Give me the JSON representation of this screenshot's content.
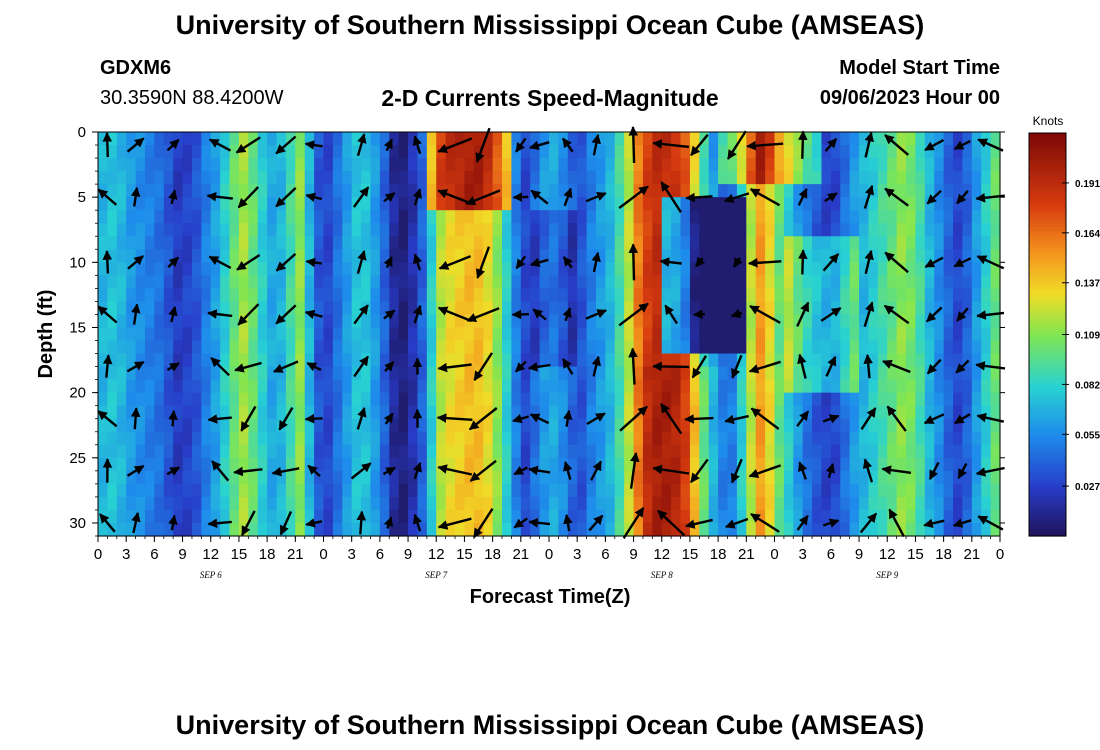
{
  "page": {
    "title_top": "University of Southern Mississippi Ocean Cube (AMSEAS)",
    "title_bottom": "University of Southern Mississippi Ocean Cube (AMSEAS)",
    "station_id": "GDXM6",
    "station_coords": "30.3590N  88.4200W",
    "plot_title": "2-D Currents Speed-Magnitude",
    "model_start_label": "Model Start Time",
    "model_start_value": "09/06/2023 Hour 00"
  },
  "chart_data": {
    "type": "heatmap",
    "title": "2-D Currents Speed-Magnitude",
    "xlabel": "Forecast Time(Z)",
    "ylabel": "Depth (ft)",
    "colorbar_label": "Knots",
    "colorbar_ticks": [
      "0.191",
      "0.164",
      "0.137",
      "0.109",
      "0.082",
      "0.055",
      "0.027"
    ],
    "colorbar_range": [
      0.0,
      0.218
    ],
    "x_tick_labels": [
      "0",
      "3",
      "6",
      "9",
      "12",
      "15",
      "18",
      "21",
      "0",
      "3",
      "6",
      "9",
      "12",
      "15",
      "18",
      "21",
      "0",
      "3",
      "6",
      "9",
      "12",
      "15",
      "18",
      "21",
      "0",
      "3",
      "6",
      "9",
      "12",
      "15",
      "18",
      "21",
      "0"
    ],
    "x_range_hours": [
      0,
      96
    ],
    "date_labels": [
      {
        "label": "SEP 6",
        "hour": 12
      },
      {
        "label": "SEP 7",
        "hour": 36
      },
      {
        "label": "SEP 8",
        "hour": 60
      },
      {
        "label": "SEP 9",
        "hour": 84
      }
    ],
    "y_tick_labels": [
      "0",
      "5",
      "10",
      "15",
      "20",
      "25",
      "30"
    ],
    "ylim": [
      0,
      31
    ],
    "speed_profile_by_hour": [
      {
        "h": 0,
        "v": 0.07
      },
      {
        "h": 1,
        "v": 0.075
      },
      {
        "h": 2,
        "v": 0.07
      },
      {
        "h": 3,
        "v": 0.06
      },
      {
        "h": 4,
        "v": 0.055
      },
      {
        "h": 5,
        "v": 0.05
      },
      {
        "h": 6,
        "v": 0.045
      },
      {
        "h": 7,
        "v": 0.035
      },
      {
        "h": 8,
        "v": 0.025
      },
      {
        "h": 9,
        "v": 0.028
      },
      {
        "h": 10,
        "v": 0.035
      },
      {
        "h": 11,
        "v": 0.05
      },
      {
        "h": 12,
        "v": 0.062
      },
      {
        "h": 13,
        "v": 0.08
      },
      {
        "h": 14,
        "v": 0.1
      },
      {
        "h": 15,
        "v": 0.115
      },
      {
        "h": 16,
        "v": 0.1
      },
      {
        "h": 17,
        "v": 0.08
      },
      {
        "h": 18,
        "v": 0.065
      },
      {
        "h": 19,
        "v": 0.07
      },
      {
        "h": 20,
        "v": 0.09
      },
      {
        "h": 21,
        "v": 0.11
      },
      {
        "h": 22,
        "v": 0.07
      },
      {
        "h": 23,
        "v": 0.035
      },
      {
        "h": 24,
        "v": 0.03
      },
      {
        "h": 25,
        "v": 0.045
      },
      {
        "h": 26,
        "v": 0.06
      },
      {
        "h": 27,
        "v": 0.075
      },
      {
        "h": 28,
        "v": 0.075
      },
      {
        "h": 29,
        "v": 0.06
      },
      {
        "h": 30,
        "v": 0.04
      },
      {
        "h": 31,
        "v": 0.015
      },
      {
        "h": 32,
        "v": 0.008
      },
      {
        "h": 33,
        "v": 0.02
      },
      {
        "h": 34,
        "v": 0.04
      },
      {
        "h": 35,
        "v": 0.08
      },
      {
        "h": 36,
        "v": 0.12
      },
      {
        "h": 37,
        "v": 0.13
      },
      {
        "h": 38,
        "v": 0.135
      },
      {
        "h": 39,
        "v": 0.14
      },
      {
        "h": 40,
        "v": 0.14
      },
      {
        "h": 41,
        "v": 0.13
      },
      {
        "h": 42,
        "v": 0.11
      },
      {
        "h": 43,
        "v": 0.08
      },
      {
        "h": 44,
        "v": 0.05
      },
      {
        "h": 45,
        "v": 0.03
      },
      {
        "h": 46,
        "v": 0.045
      },
      {
        "h": 47,
        "v": 0.06
      },
      {
        "h": 48,
        "v": 0.065
      },
      {
        "h": 49,
        "v": 0.055
      },
      {
        "h": 50,
        "v": 0.04
      },
      {
        "h": 51,
        "v": 0.035
      },
      {
        "h": 52,
        "v": 0.05
      },
      {
        "h": 53,
        "v": 0.06
      },
      {
        "h": 54,
        "v": 0.07
      },
      {
        "h": 55,
        "v": 0.09
      },
      {
        "h": 56,
        "v": 0.12
      },
      {
        "h": 57,
        "v": 0.16
      },
      {
        "h": 58,
        "v": 0.18
      },
      {
        "h": 59,
        "v": 0.19
      },
      {
        "h": 60,
        "v": 0.19
      },
      {
        "h": 61,
        "v": 0.185
      },
      {
        "h": 62,
        "v": 0.17
      },
      {
        "h": 63,
        "v": 0.13
      },
      {
        "h": 64,
        "v": 0.09
      },
      {
        "h": 65,
        "v": 0.06
      },
      {
        "h": 66,
        "v": 0.04
      },
      {
        "h": 67,
        "v": 0.05
      },
      {
        "h": 68,
        "v": 0.08
      },
      {
        "h": 69,
        "v": 0.12
      },
      {
        "h": 70,
        "v": 0.15
      },
      {
        "h": 71,
        "v": 0.13
      },
      {
        "h": 72,
        "v": 0.1
      },
      {
        "h": 73,
        "v": 0.08
      },
      {
        "h": 74,
        "v": 0.06
      },
      {
        "h": 75,
        "v": 0.045
      },
      {
        "h": 76,
        "v": 0.035
      },
      {
        "h": 77,
        "v": 0.028
      },
      {
        "h": 78,
        "v": 0.03
      },
      {
        "h": 79,
        "v": 0.045
      },
      {
        "h": 80,
        "v": 0.06
      },
      {
        "h": 81,
        "v": 0.07
      },
      {
        "h": 82,
        "v": 0.08
      },
      {
        "h": 83,
        "v": 0.09
      },
      {
        "h": 84,
        "v": 0.1
      },
      {
        "h": 85,
        "v": 0.11
      },
      {
        "h": 86,
        "v": 0.105
      },
      {
        "h": 87,
        "v": 0.09
      },
      {
        "h": 88,
        "v": 0.07
      },
      {
        "h": 89,
        "v": 0.055
      },
      {
        "h": 90,
        "v": 0.04
      },
      {
        "h": 91,
        "v": 0.03
      },
      {
        "h": 92,
        "v": 0.04
      },
      {
        "h": 93,
        "v": 0.06
      },
      {
        "h": 94,
        "v": 0.08
      },
      {
        "h": 95,
        "v": 0.1
      },
      {
        "h": 96,
        "v": 0.1
      }
    ],
    "vector_columns_hours": [
      1,
      4,
      8,
      13,
      16,
      20,
      23,
      28,
      31,
      34,
      38,
      41,
      45,
      47,
      50,
      53,
      57,
      61,
      64,
      68,
      71,
      75,
      78,
      82,
      85,
      89,
      92,
      95
    ],
    "vector_depth_rows_ft": [
      1,
      5,
      10,
      14,
      18,
      22,
      26,
      30
    ]
  }
}
